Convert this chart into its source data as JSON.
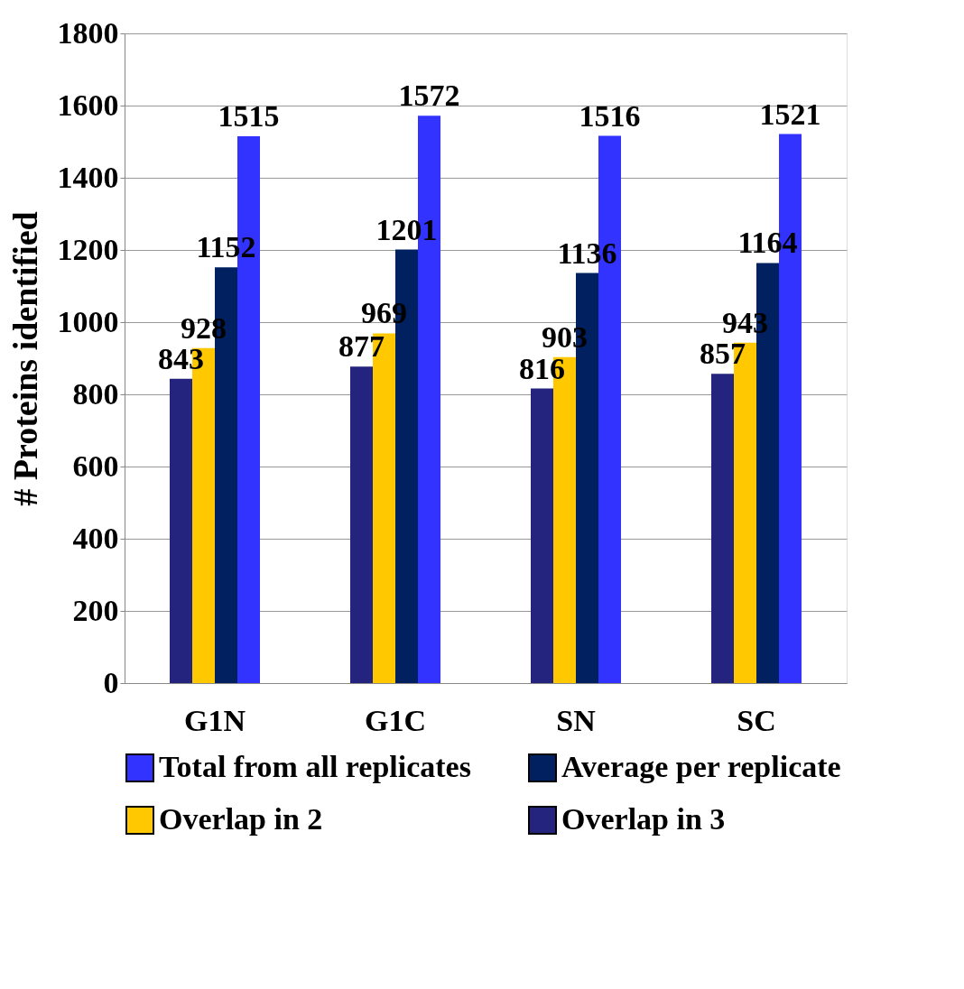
{
  "chart_data": {
    "type": "bar",
    "ylabel": "# Proteins identified",
    "categories": [
      "G1N",
      "G1C",
      "SN",
      "SC"
    ],
    "series": [
      {
        "name": "Overlap in 3",
        "color": "#24247f",
        "values": [
          843,
          877,
          816,
          857
        ]
      },
      {
        "name": "Overlap in 2",
        "color": "#ffc800",
        "values": [
          928,
          969,
          903,
          943
        ]
      },
      {
        "name": "Average per replicate",
        "color": "#00205f",
        "values": [
          1152,
          1201,
          1136,
          1164
        ]
      },
      {
        "name": "Total from all replicates",
        "color": "#3333ff",
        "values": [
          1515,
          1572,
          1516,
          1521
        ]
      }
    ],
    "ylim": [
      0,
      1800
    ],
    "yticks": [
      0,
      200,
      400,
      600,
      800,
      1000,
      1200,
      1400,
      1600,
      1800
    ],
    "grid": "y",
    "legend": "bottom",
    "data_labels": true
  }
}
